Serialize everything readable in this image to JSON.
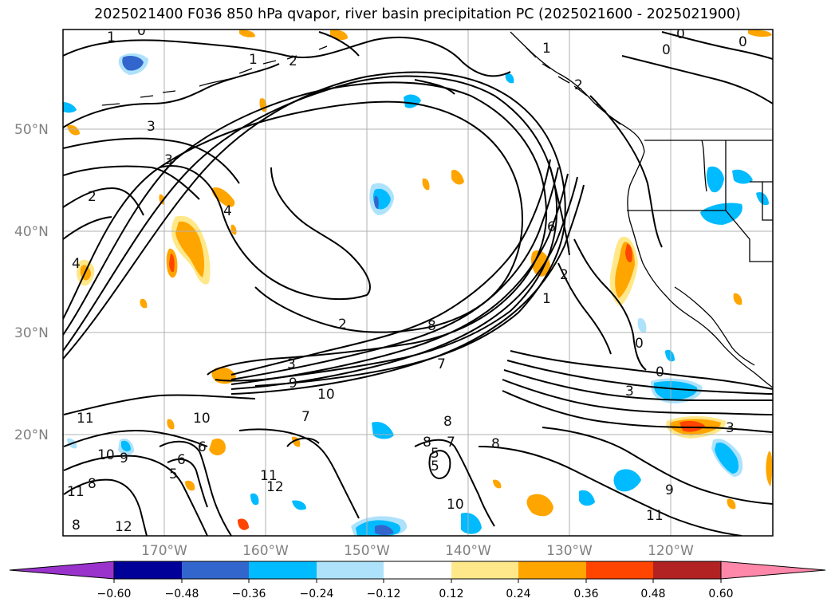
{
  "title": "2025021400 F036 850 hPa qvapor, river basin precipitation PC (2025021600 - 2025021900)",
  "lat_labels": [
    "50°N",
    "40°N",
    "30°N",
    "20°N"
  ],
  "lon_labels": [
    "170°W",
    "160°W",
    "150°W",
    "140°W",
    "130°W",
    "120°W"
  ],
  "colorbar": {
    "colors": [
      "#9933cc",
      "#000099",
      "#3366cc",
      "#00bbff",
      "#aee2fb",
      "#ffffff",
      "#ffe88a",
      "#ffa500",
      "#ff4500",
      "#b22222",
      "#ff88aa"
    ],
    "tick_labels": [
      "−0.60",
      "−0.48",
      "−0.36",
      "−0.24",
      "−0.12",
      "0.12",
      "0.24",
      "0.36",
      "0.48",
      "0.60"
    ]
  },
  "contour_labels": [
    {
      "text": "0"
    },
    {
      "text": "1"
    },
    {
      "text": "1"
    },
    {
      "text": "2"
    },
    {
      "text": "3"
    },
    {
      "text": "3"
    },
    {
      "text": "2"
    },
    {
      "text": "4"
    },
    {
      "text": "4"
    },
    {
      "text": "1"
    },
    {
      "text": "2"
    },
    {
      "text": "0"
    },
    {
      "text": "0"
    },
    {
      "text": "0"
    },
    {
      "text": "6"
    },
    {
      "text": "2"
    },
    {
      "text": "1"
    },
    {
      "text": "0"
    },
    {
      "text": "0"
    },
    {
      "text": "3"
    },
    {
      "text": "2"
    },
    {
      "text": "3"
    },
    {
      "text": "9"
    },
    {
      "text": "10"
    },
    {
      "text": "8"
    },
    {
      "text": "7"
    },
    {
      "text": "11"
    },
    {
      "text": "10"
    },
    {
      "text": "7"
    },
    {
      "text": "8"
    },
    {
      "text": "6"
    },
    {
      "text": "9"
    },
    {
      "text": "10"
    },
    {
      "text": "6"
    },
    {
      "text": "5"
    },
    {
      "text": "8"
    },
    {
      "text": "11"
    },
    {
      "text": "12"
    },
    {
      "text": "12"
    },
    {
      "text": "8"
    },
    {
      "text": "10"
    },
    {
      "text": "11"
    },
    {
      "text": "9"
    },
    {
      "text": "11"
    },
    {
      "text": "8"
    },
    {
      "text": "5"
    },
    {
      "text": "7"
    },
    {
      "text": "8"
    },
    {
      "text": "3"
    },
    {
      "text": "5"
    }
  ],
  "blobs": [
    {
      "level": 0.33,
      "color": "#ffa500"
    },
    {
      "level": 0.2,
      "color": "#ffe88a"
    },
    {
      "level": 0.4,
      "color": "#ff4500"
    },
    {
      "level": -0.3,
      "color": "#00bbff"
    },
    {
      "level": -0.15,
      "color": "#aee2fb"
    },
    {
      "level": -0.4,
      "color": "#3366cc"
    }
  ]
}
